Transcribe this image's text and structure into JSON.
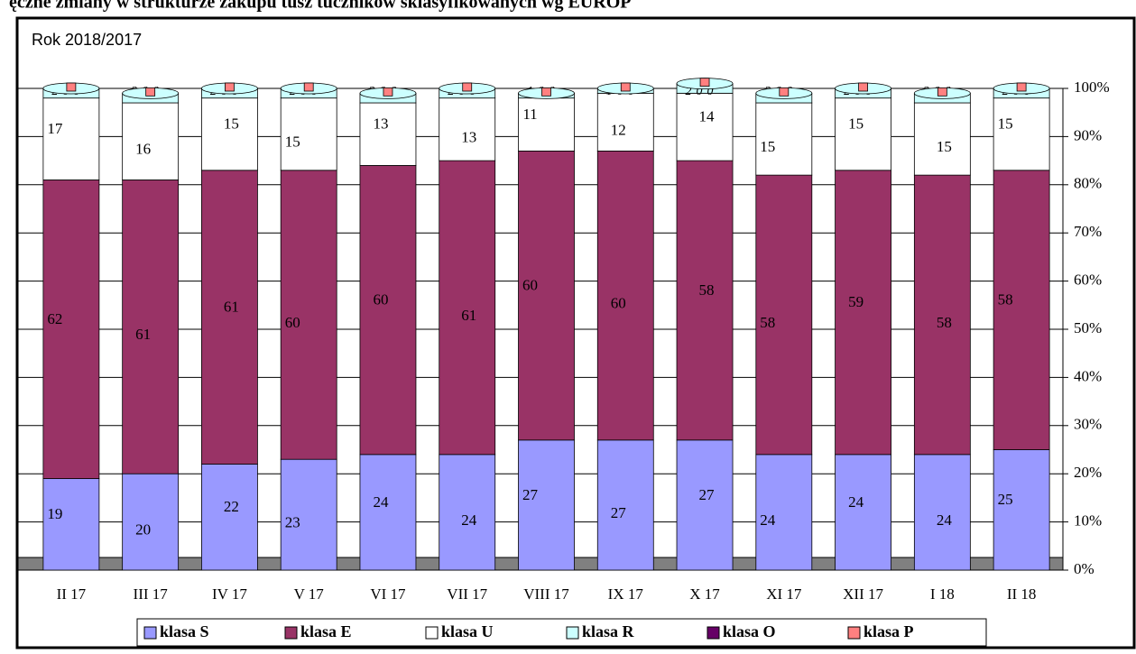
{
  "chart_data": {
    "type": "stacked_bar",
    "title": "ęczne zmiany w strukturze zakupu tusz tuczników sklasyfikowanych wg EUROP",
    "subtitle": "Rok 2018/2017",
    "categories": [
      "II 17",
      "III 17",
      "IV 17",
      "V 17",
      "VI 17",
      "VII 17",
      "VIII 17",
      "IX 17",
      "X 17",
      "XI 17",
      "XII 17",
      "I 18",
      "II 18"
    ],
    "series": [
      {
        "name": "klasa S",
        "color": "#9999ff",
        "values": [
          19,
          20,
          22,
          23,
          24,
          24,
          27,
          27,
          27,
          24,
          24,
          24,
          25
        ]
      },
      {
        "name": "klasa E",
        "color": "#993366",
        "values": [
          62,
          61,
          61,
          60,
          60,
          61,
          60,
          60,
          58,
          58,
          59,
          58,
          58
        ]
      },
      {
        "name": "klasa U",
        "color": "#ffffff",
        "values": [
          17,
          16,
          15,
          15,
          13,
          13,
          11,
          12,
          14,
          15,
          15,
          15,
          15
        ]
      },
      {
        "name": "klasa R",
        "color": "#ccffff",
        "values": [
          2,
          2,
          2,
          2,
          2,
          2,
          1,
          1,
          2,
          2,
          2,
          2,
          2
        ]
      },
      {
        "name": "klasa O",
        "color": "#660066",
        "values": [
          0,
          0,
          0,
          0,
          0,
          0,
          0,
          0,
          0,
          0,
          0,
          0,
          0
        ]
      },
      {
        "name": "klasa P",
        "color": "#ff8080",
        "values": [
          0,
          0,
          0,
          0,
          0,
          0,
          0,
          0,
          0,
          0,
          0,
          0,
          0
        ]
      }
    ],
    "ylim": [
      0,
      100
    ],
    "yticks": [
      {
        "value": 0,
        "label": "0%"
      },
      {
        "value": 10,
        "label": "10%"
      },
      {
        "value": 20,
        "label": "20%"
      },
      {
        "value": 30,
        "label": "30%"
      },
      {
        "value": 40,
        "label": "40%"
      },
      {
        "value": 50,
        "label": "50%"
      },
      {
        "value": 60,
        "label": "60%"
      },
      {
        "value": 70,
        "label": "70%"
      },
      {
        "value": 80,
        "label": "80%"
      },
      {
        "value": 90,
        "label": "90%"
      },
      {
        "value": 100,
        "label": "100%"
      }
    ],
    "grid": true
  }
}
